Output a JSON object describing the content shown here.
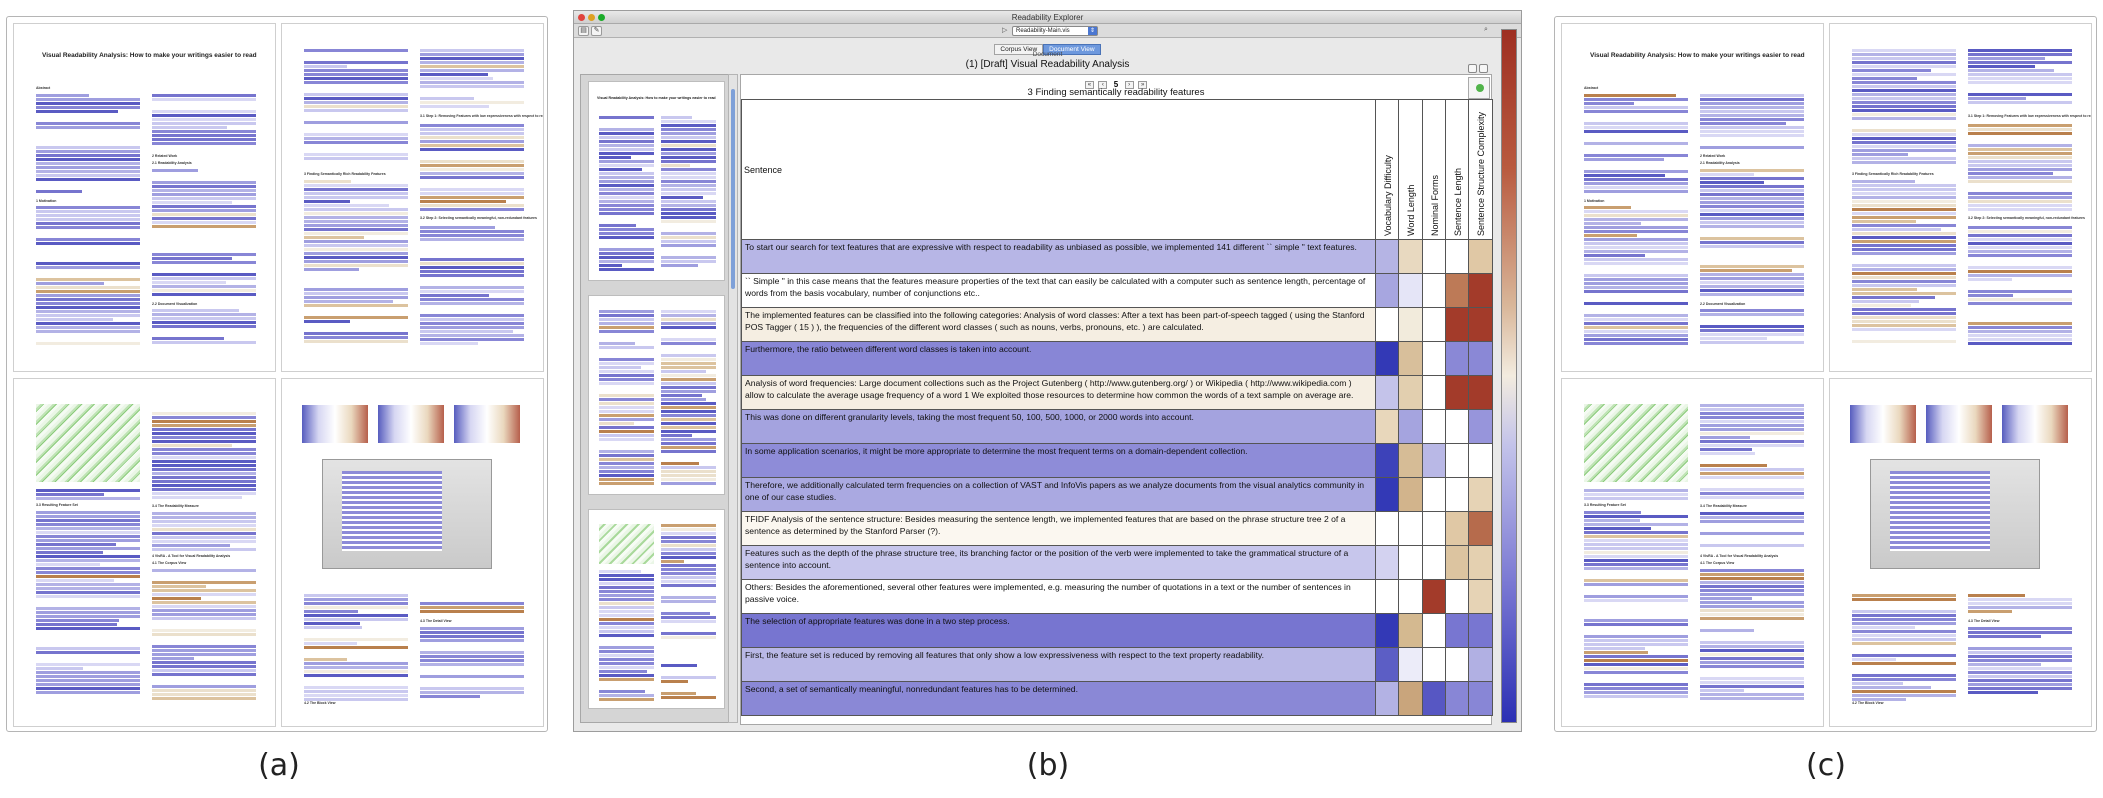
{
  "captions": [
    "(a)",
    "(b)",
    "(c)"
  ],
  "thumbs": {
    "title": "Visual Readability Analysis: How to make your writings easier to read",
    "headings": {
      "abstract": "Abstract",
      "related": "2   Related Work",
      "readability": "2.1   Readability Analysis",
      "motivation": "1   Motivation",
      "document_visualization": "2.2   Document Visualization",
      "step1": "3.1   Step 1: Removing Features with low expressiveness with respect to readability",
      "finding": "3   Finding Semantically Rich Readability Features",
      "step2": "3.2   Step 2: Selecting semantically meaningful, non-redundant features",
      "resulting": "3.3   Resulting Feature Set",
      "measure": "3.4   The Readability Measure",
      "vissa": "4   VisRA - A Tool for Visual Readability Analysis",
      "corpus": "4.1   The Corpus View",
      "block": "4.2   The Block View",
      "detail": "4.3   The Detail View"
    }
  },
  "app": {
    "window_title": "Readability Explorer",
    "file": "Readability-Main.vis",
    "tabs": [
      "Corpus View",
      "Document View"
    ],
    "active_tab": "Document View",
    "doc_label": "Document",
    "doc_title": "(1) [Draft] Visual Readability Analysis",
    "page_num": "5",
    "section_title": "3 Finding semantically readability features",
    "sentence_header": "Sentence",
    "features": [
      "Vocabulary Difficulty",
      "Word Length",
      "Nominal Forms",
      "Sentence Length",
      "Sentence Structure Complexity"
    ],
    "rows": [
      {
        "text": "To start our search for text features that are expressive with respect to readability as unbiased as possible, we implemented 141 different `` simple \" text features.",
        "bg": "#b7b6e6",
        "cells": [
          "#b5b4e4",
          "#e8d9c0",
          "#ffffff",
          "#ffffff",
          "#e0c8a5"
        ]
      },
      {
        "text": "`` Simple \" in this case means that the features measure properties of the text that can easily be calculated with a computer such as sentence length, percentage of words from the basis vocabulary, number of conjunctions etc..",
        "bg": "#ffffff",
        "cells": [
          "#a7a6e0",
          "#e5e5f7",
          "#ffffff",
          "#bd7a57",
          "#a33b2a"
        ]
      },
      {
        "text": "The implemented features can be classified into the following categories: Analysis of word classes: After a text has been part-of-speech tagged ( using the Stanford POS Tagger ( 15 ) ), the frequencies of the different word classes ( such as nouns, verbs, pronouns, etc. ) are calculated.",
        "bg": "#f5eee2",
        "cells": [
          "#ffffff",
          "#f2ebdc",
          "#ffffff",
          "#a33b2a",
          "#a33b2a"
        ]
      },
      {
        "text": "Furthermore, the ratio between different word classes is taken into account.",
        "bg": "#8886d6",
        "cells": [
          "#3339b6",
          "#d8bf9b",
          "#ffffff",
          "#8a88d6",
          "#8a88d6"
        ]
      },
      {
        "text": "Analysis of word frequencies: Large document collections such as the Project Gutenberg ( http://www.gutenberg.org/ ) or Wikipedia ( http://www.wikipedia.com ) allow to calculate the average usage frequency of a word 1 We exploited those resources to determine how common the words of a text sample on average are.",
        "bg": "#f5eee2",
        "cells": [
          "#c4c3ea",
          "#e2cfaf",
          "#ffffff",
          "#a33b2a",
          "#a33b2a"
        ]
      },
      {
        "text": "This was done on different granularity levels, taking the most frequent 50, 100, 500, 1000, or 2000 words into account.",
        "bg": "#a4a3df",
        "cells": [
          "#e8d7bb",
          "#a5a4df",
          "#ffffff",
          "#ffffff",
          "#9795db"
        ]
      },
      {
        "text": "In some application scenarios, it might be more appropriate to determine the most frequent terms on a domain-dependent collection.",
        "bg": "#8e8cd8",
        "cells": [
          "#3d42b9",
          "#d6bc96",
          "#b9b8e6",
          "#ffffff",
          "#ffffff"
        ]
      },
      {
        "text": "Therefore, we additionally calculated term frequencies on a collection of VAST and InfoVis papers as we analyze documents from the visual analytics community in one of our case studies.",
        "bg": "#aaa9e1",
        "cells": [
          "#3339b6",
          "#d2b48c",
          "#ffffff",
          "#ffffff",
          "#e6d3b5"
        ]
      },
      {
        "text": "TFIDF Analysis of the sentence structure: Besides measuring the sentence length, we implemented features that are based on the phrase structure tree 2 of a sentence as determined by the Stanford Parser (?).",
        "bg": "#fbf7f0",
        "cells": [
          "#ffffff",
          "#ffffff",
          "#ffffff",
          "#e0c8a5",
          "#b66b4c"
        ]
      },
      {
        "text": "Features such as the depth of the phrase structure tree, its branching factor or the position of the verb were implemented to take the grammatical structure of a sentence into account.",
        "bg": "#c7c6ec",
        "cells": [
          "#d3d2f0",
          "#ffffff",
          "#ffffff",
          "#dcc4a0",
          "#e4d0b0"
        ]
      },
      {
        "text": "Others: Besides the aforementioned, several other features were implemented, e.g. measuring the number of quotations in a text or the number of sentences in passive voice.",
        "bg": "#ffffff",
        "cells": [
          "#ffffff",
          "#ffffff",
          "#a33b2a",
          "#ffffff",
          "#e6d3b5"
        ]
      },
      {
        "text": "The selection of appropriate features was done in a two step process.",
        "bg": "#7775d0",
        "cells": [
          "#3339b6",
          "#d4b990",
          "#ffffff",
          "#7876d1",
          "#7876d1"
        ]
      },
      {
        "text": "First, the feature set is reduced by removing all features that only show a low expressiveness with respect to the text property readability.",
        "bg": "#b9b8e6",
        "cells": [
          "#5c5ec5",
          "#ececf9",
          "#ffffff",
          "#ffffff",
          "#b1b0e3"
        ]
      },
      {
        "text": "Second, a set of semantically meaningful, nonredundant features has to be determined.",
        "bg": "#8a88d6",
        "cells": [
          "#b3b2e4",
          "#c9a57c",
          "#5757c3",
          "#8886d6",
          "#8886d6"
        ]
      }
    ]
  }
}
